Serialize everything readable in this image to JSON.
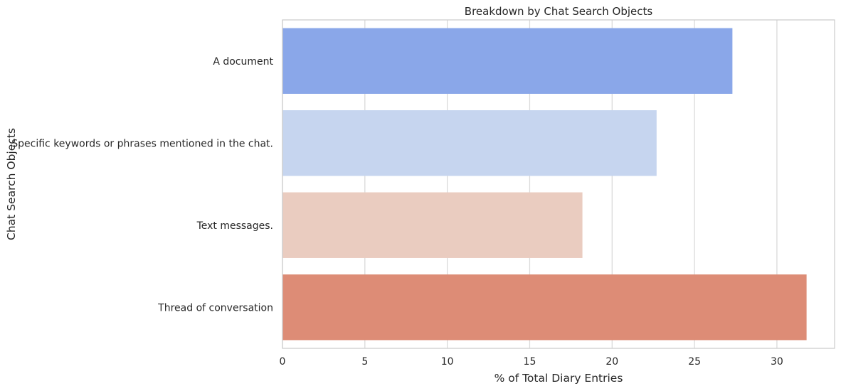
{
  "chart_data": {
    "type": "bar",
    "orientation": "horizontal",
    "title": "Breakdown by Chat Search Objects",
    "xlabel": "% of Total Diary Entries",
    "ylabel": "Chat Search Objects",
    "categories": [
      "A document",
      "Specific keywords or phrases mentioned in the chat.",
      "Text messages.",
      "Thread of conversation"
    ],
    "values": [
      27.3,
      22.7,
      18.2,
      31.8
    ],
    "colors": [
      "#8aa7e9",
      "#c6d5ef",
      "#eaccc0",
      "#dd8c76"
    ],
    "xlim": [
      0,
      33.5
    ],
    "xticks": [
      0,
      5,
      10,
      15,
      20,
      25,
      30
    ],
    "grid": "vertical",
    "legend": "none"
  }
}
